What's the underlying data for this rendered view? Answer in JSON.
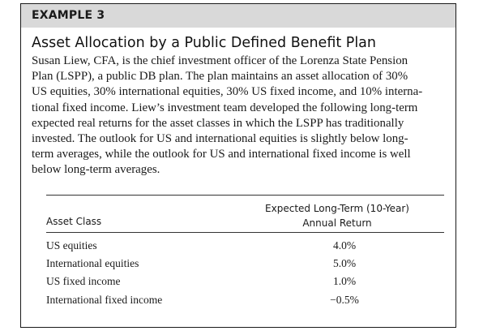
{
  "example": {
    "label": "EXAMPLE 3",
    "title": "Asset Allocation by a Public Defined Benefit Plan",
    "paragraph_lines": [
      "Susan Liew, CFA, is the chief investment officer of the Lorenza State Pension",
      "Plan (LSPP), a public DB plan. The plan maintains an asset allocation of 30%",
      "US equities, 30% international equities, 30% US fixed income, and 10% interna-",
      "tional fixed income. Liew’s investment team developed the following long-term",
      "expected real returns for the asset classes in which the LSPP has traditionally",
      "invested. The outlook for US and international equities is slightly below long-",
      "term averages, while the outlook for US and international fixed income is well",
      "below long-term averages."
    ]
  },
  "table": {
    "col_asset_class": "Asset Class",
    "col_return_line1": "Expected Long-Term (10-Year)",
    "col_return_line2": "Annual Return",
    "rows": [
      {
        "asset": "US equities",
        "return": "4.0%"
      },
      {
        "asset": "International equities",
        "return": "5.0%"
      },
      {
        "asset": "US fixed income",
        "return": "1.0%"
      },
      {
        "asset": "International fixed income",
        "return": "−0.5%"
      }
    ]
  },
  "colors": {
    "header_bar": "#d9d9d9",
    "border": "#1a1a1a",
    "text": "#1a1a1a"
  }
}
